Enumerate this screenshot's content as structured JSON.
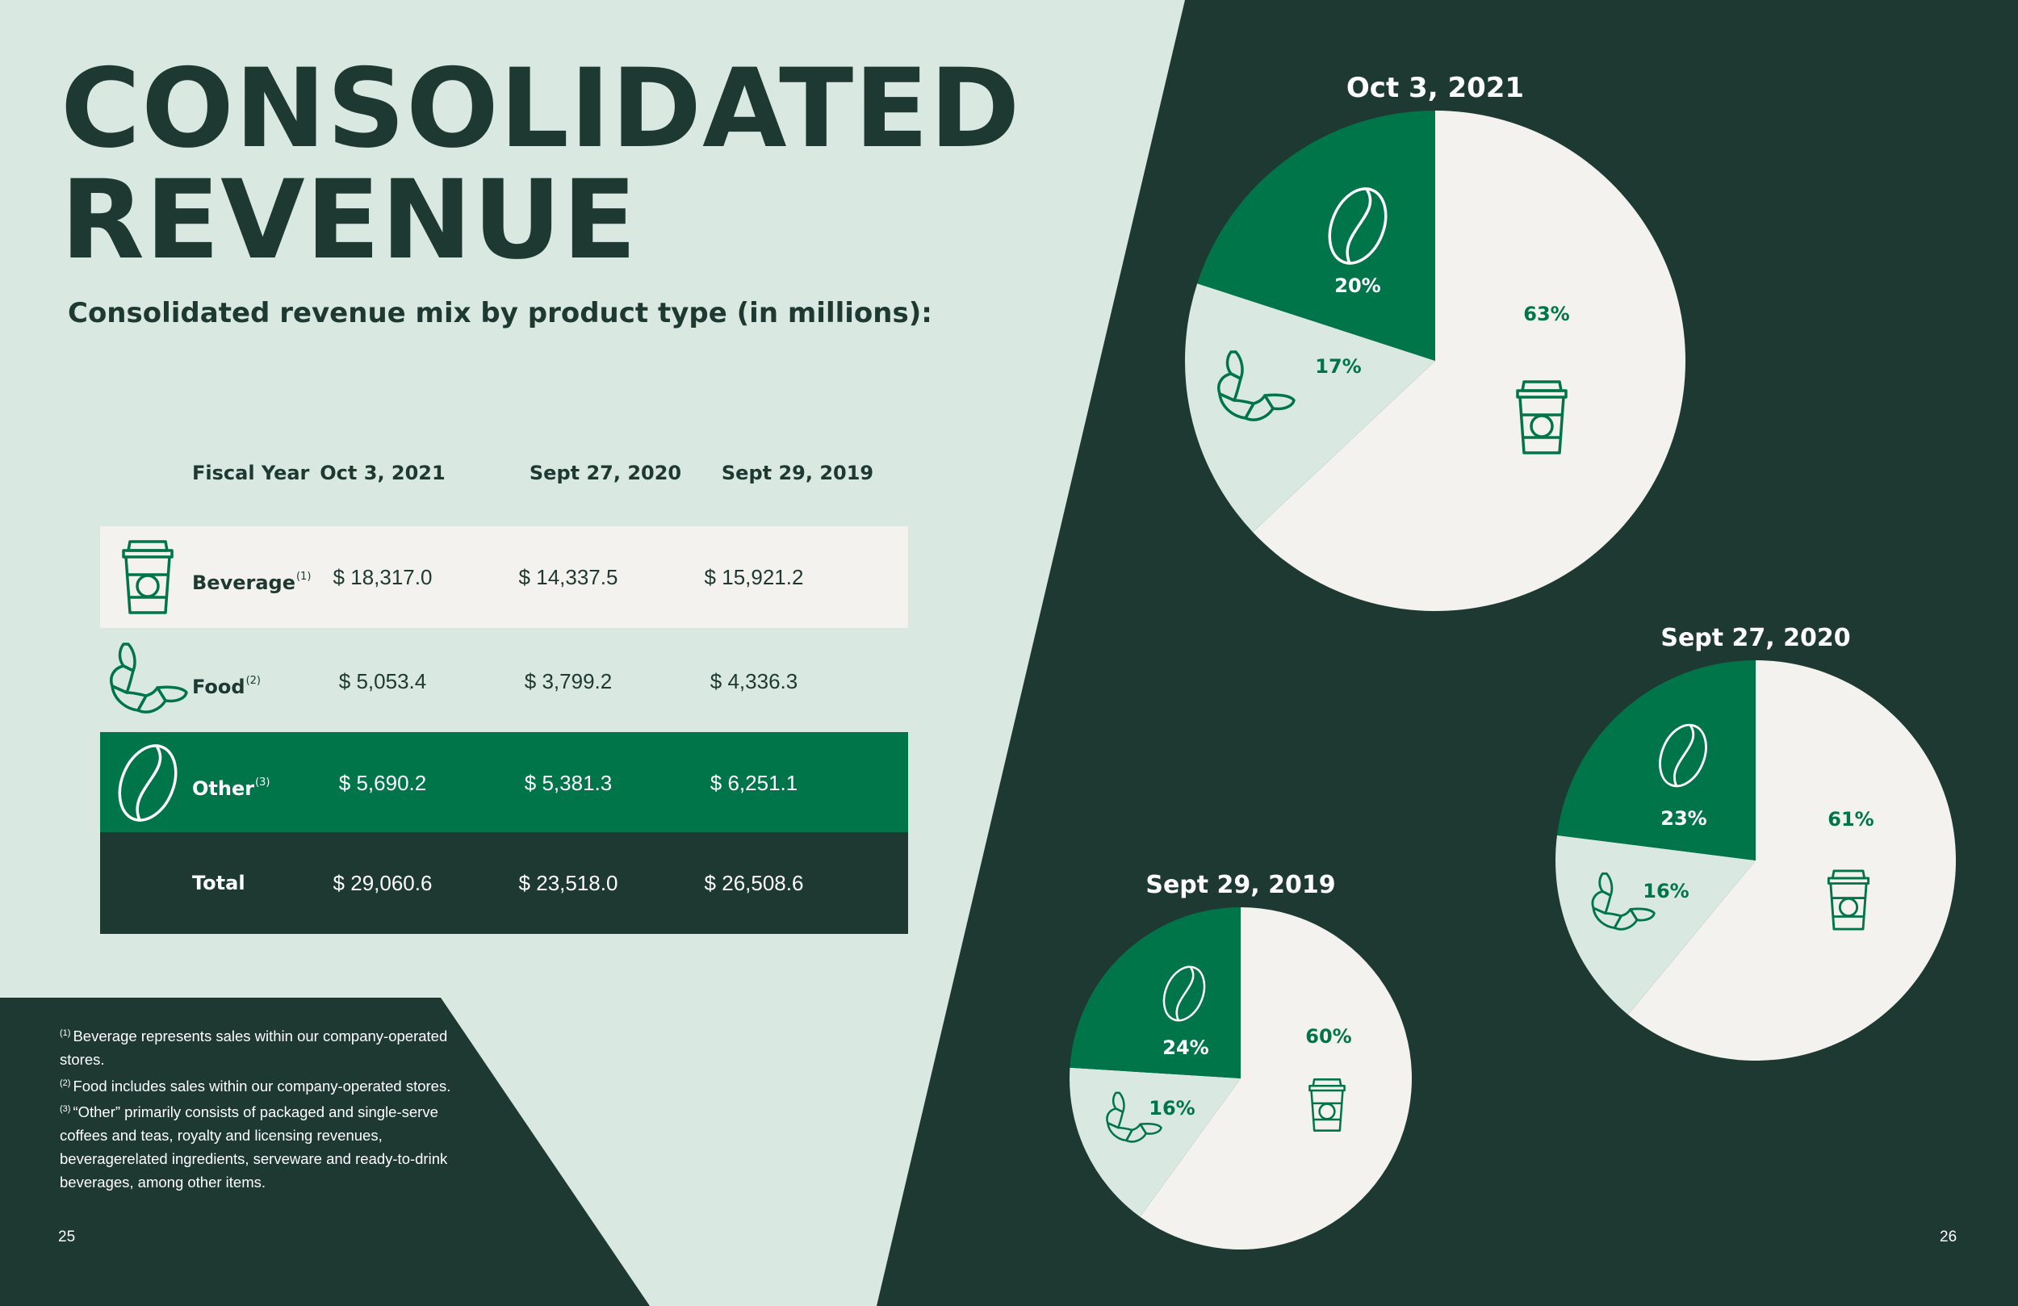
{
  "title": {
    "line1": "CONSOLIDATED",
    "line2": "REVENUE"
  },
  "subtitle": "Consolidated revenue mix by product type (in millions):",
  "colors": {
    "dark_green": "#1e3932",
    "starbucks_green": "#00754a",
    "light_green": "#d9e8e1",
    "cream": "#f3f2ee",
    "white": "#ffffff"
  },
  "table": {
    "headers": [
      "Fiscal Year",
      "Oct 3, 2021",
      "Sept 27, 2020",
      "Sept 29, 2019"
    ],
    "rows": [
      {
        "label": "Beverage",
        "note": "(1)",
        "icon": "coffee-cup-icon",
        "values": [
          "$ 18,317.0",
          "$ 14,337.5",
          "$ 15,921.2"
        ]
      },
      {
        "label": "Food",
        "note": "(2)",
        "icon": "croissant-icon",
        "values": [
          "$ 5,053.4",
          "$ 3,799.2",
          "$ 4,336.3"
        ]
      },
      {
        "label": "Other",
        "note": "(3)",
        "icon": "coffee-bean-icon",
        "values": [
          "$ 5,690.2",
          "$ 5,381.3",
          "$ 6,251.1"
        ]
      },
      {
        "label": "Total",
        "note": "",
        "icon": "",
        "values": [
          "$ 29,060.6",
          "$ 23,518.0",
          "$ 26,508.6"
        ]
      }
    ]
  },
  "footnotes": [
    {
      "mark": "(1)",
      "text": "Beverage represents sales within our company-operated stores."
    },
    {
      "mark": "(2)",
      "text": "Food includes sales within our company-operated stores."
    },
    {
      "mark": "(3)",
      "text": "“Other” primarily consists of packaged and single-serve coffees and teas, royalty and licensing revenues, beveragerelated ingredients, serveware and ready-to-drink beverages, among other items."
    }
  ],
  "page_numbers": {
    "left": "25",
    "right": "26"
  },
  "chart_data": [
    {
      "type": "pie",
      "title": "Oct 3, 2021",
      "categories": [
        "Beverage",
        "Food",
        "Other"
      ],
      "values": [
        63,
        17,
        20
      ],
      "labels": [
        "63%",
        "17%",
        "20%"
      ],
      "colors": [
        "#f3f2ee",
        "#d9e8e1",
        "#00754a"
      ],
      "icons": [
        "coffee-cup-icon",
        "croissant-icon",
        "coffee-bean-icon"
      ]
    },
    {
      "type": "pie",
      "title": "Sept 27, 2020",
      "categories": [
        "Beverage",
        "Food",
        "Other"
      ],
      "values": [
        61,
        16,
        23
      ],
      "labels": [
        "61%",
        "16%",
        "23%"
      ],
      "colors": [
        "#f3f2ee",
        "#d9e8e1",
        "#00754a"
      ],
      "icons": [
        "coffee-cup-icon",
        "croissant-icon",
        "coffee-bean-icon"
      ]
    },
    {
      "type": "pie",
      "title": "Sept 29, 2019",
      "categories": [
        "Beverage",
        "Food",
        "Other"
      ],
      "values": [
        60,
        16,
        24
      ],
      "labels": [
        "60%",
        "16%",
        "24%"
      ],
      "colors": [
        "#f3f2ee",
        "#d9e8e1",
        "#00754a"
      ],
      "icons": [
        "coffee-cup-icon",
        "croissant-icon",
        "coffee-bean-icon"
      ]
    }
  ]
}
